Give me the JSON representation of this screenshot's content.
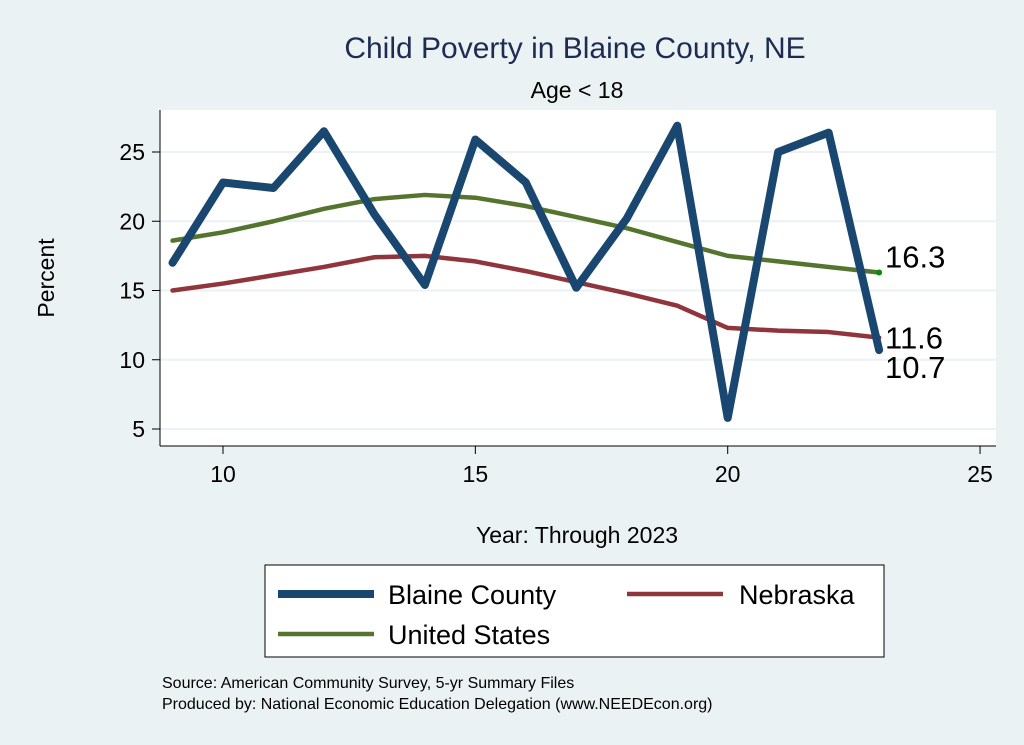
{
  "chart_data": {
    "type": "line",
    "title": "Child Poverty in Blaine County, NE",
    "subtitle": "Age < 18",
    "xlabel": "Year: Through 2023",
    "ylabel": "Percent",
    "xlim": [
      8.75,
      25.3
    ],
    "ylim": [
      4.0,
      28.2
    ],
    "xticks": [
      10,
      15,
      20,
      25
    ],
    "yticks": [
      5,
      10,
      15,
      20,
      25
    ],
    "grid": true,
    "x": [
      9,
      10,
      11,
      12,
      13,
      14,
      15,
      16,
      17,
      18,
      19,
      20,
      21,
      22,
      23
    ],
    "series": [
      {
        "name": "Blaine County",
        "color": "#1a476f",
        "width": 8,
        "values": [
          17.0,
          22.8,
          22.4,
          26.5,
          20.5,
          15.4,
          25.9,
          22.8,
          15.2,
          20.2,
          26.9,
          5.8,
          25.0,
          26.4,
          10.7
        ],
        "end_label": "10.7"
      },
      {
        "name": "Nebraska",
        "color": "#90353b",
        "width": 4.5,
        "values": [
          15.0,
          15.5,
          16.1,
          16.7,
          17.4,
          17.5,
          17.1,
          16.4,
          15.6,
          14.8,
          13.9,
          12.3,
          12.1,
          12.0,
          11.6
        ],
        "end_label": "11.6"
      },
      {
        "name": "United States",
        "color": "#55752f",
        "width": 4.5,
        "values": [
          18.6,
          19.2,
          20.0,
          20.9,
          21.6,
          21.9,
          21.7,
          21.1,
          20.3,
          19.5,
          18.5,
          17.5,
          17.1,
          16.7,
          16.3
        ],
        "end_label": "16.3"
      }
    ],
    "legend_position": "bottom",
    "notes": [
      "Source: American Community Survey, 5-yr Summary Files",
      "Produced by: National Economic Education Delegation (www.NEEDEcon.org)"
    ]
  }
}
